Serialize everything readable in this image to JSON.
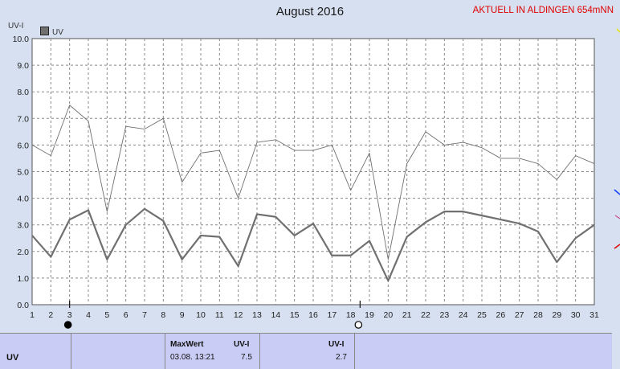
{
  "header": {
    "title": "August 2016",
    "station": "AKTUELL IN ALDINGEN 654mNN",
    "y_unit": "UV-I",
    "legend_label": "UV"
  },
  "colors": {
    "background": "#d6e0f0",
    "plot_background": "#ffffff",
    "series_uv": "#707070",
    "series_max": "#707070",
    "station_text": "#e00000",
    "table_background": "#c9cdf5"
  },
  "chart_data": {
    "type": "line",
    "title": "August 2016",
    "ylabel": "UV-I",
    "xlabel": "",
    "ylim": [
      0,
      10
    ],
    "yticks": [
      "0.0",
      "1.0",
      "2.0",
      "3.0",
      "4.0",
      "5.0",
      "6.0",
      "7.0",
      "8.0",
      "9.0",
      "10.0"
    ],
    "x": [
      1,
      2,
      3,
      4,
      5,
      6,
      7,
      8,
      9,
      10,
      11,
      12,
      13,
      14,
      15,
      16,
      17,
      18,
      19,
      20,
      21,
      22,
      23,
      24,
      25,
      26,
      27,
      28,
      29,
      30,
      31
    ],
    "grid": true,
    "legend_placement": "top-left",
    "series": [
      {
        "name": "",
        "role": "daily max",
        "values": [
          6.0,
          5.6,
          7.5,
          6.9,
          3.5,
          6.7,
          6.6,
          7.0,
          4.6,
          5.7,
          5.8,
          4.0,
          6.1,
          6.2,
          5.8,
          5.8,
          6.0,
          4.3,
          5.7,
          1.7,
          5.3,
          6.5,
          6.0,
          6.1,
          5.9,
          5.5,
          5.5,
          5.3,
          4.7,
          5.6,
          5.3
        ]
      },
      {
        "name": "UV",
        "role": "daily mean",
        "values": [
          2.6,
          1.8,
          3.2,
          3.55,
          1.7,
          3.0,
          3.6,
          3.15,
          1.7,
          2.6,
          2.55,
          1.45,
          3.4,
          3.3,
          2.6,
          3.05,
          1.85,
          1.85,
          2.4,
          0.9,
          2.55,
          3.1,
          3.5,
          3.5,
          3.35,
          3.2,
          3.05,
          2.75,
          1.6,
          2.5,
          3.0
        ]
      }
    ],
    "markers": [
      {
        "day": 3,
        "symbol": "filled-circle"
      },
      {
        "day": 18.5,
        "symbol": "open-circle"
      }
    ]
  },
  "table": {
    "row_label": "UV",
    "max_header": "MaxWert",
    "unit_header": "UV-I",
    "max_datetime": "03.08.  13:21",
    "max_value": "7.5",
    "avg_header": "UV-I",
    "avg_value": "2.7"
  }
}
